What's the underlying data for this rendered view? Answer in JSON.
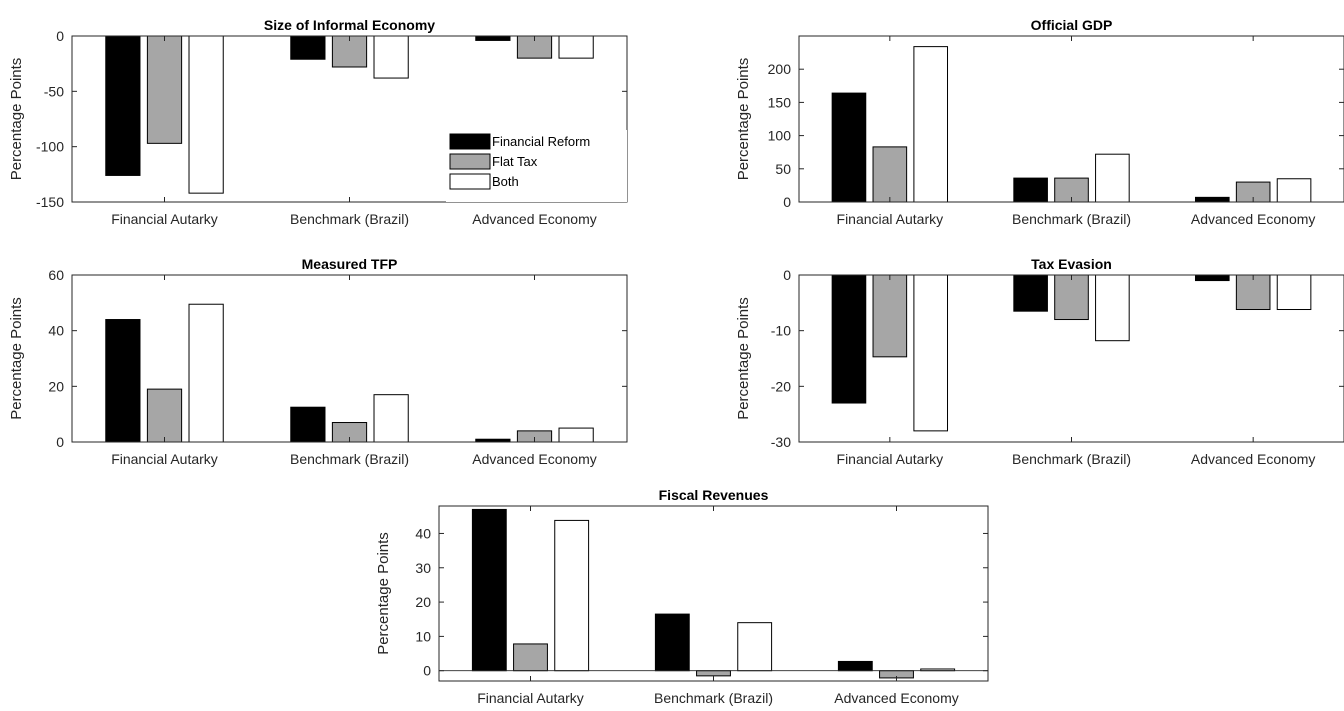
{
  "colors": {
    "series": [
      "#000000",
      "#a6a6a6",
      "#ffffff"
    ],
    "axis": "#262626",
    "background": "#ffffff"
  },
  "chart_data": [
    {
      "type": "bar",
      "title": "Size of Informal Economy",
      "ylabel": "Percentage Points",
      "xlabel": "",
      "categories": [
        "Financial Autarky",
        "Benchmark (Brazil)",
        "Advanced Economy"
      ],
      "ylim": [
        -150,
        0
      ],
      "yticks": [
        -150,
        -100,
        -50,
        0
      ],
      "grid": false,
      "legend_position": "lower-right",
      "series": [
        {
          "name": "Financial Reform",
          "values": [
            -126,
            -21,
            -4
          ]
        },
        {
          "name": "Flat Tax",
          "values": [
            -97,
            -28,
            -20
          ]
        },
        {
          "name": "Both",
          "values": [
            -142,
            -38,
            -20
          ]
        }
      ]
    },
    {
      "type": "bar",
      "title": "Official GDP",
      "ylabel": "Percentage Points",
      "xlabel": "",
      "categories": [
        "Financial Autarky",
        "Benchmark (Brazil)",
        "Advanced Economy"
      ],
      "ylim": [
        0,
        250
      ],
      "yticks": [
        0,
        50,
        100,
        150,
        200
      ],
      "grid": false,
      "series": [
        {
          "name": "Financial Reform",
          "values": [
            164,
            36,
            7
          ]
        },
        {
          "name": "Flat Tax",
          "values": [
            83,
            36,
            30
          ]
        },
        {
          "name": "Both",
          "values": [
            234,
            72,
            35
          ]
        }
      ]
    },
    {
      "type": "bar",
      "title": "Measured TFP",
      "ylabel": "Percentage Points",
      "xlabel": "",
      "categories": [
        "Financial Autarky",
        "Benchmark (Brazil)",
        "Advanced Economy"
      ],
      "ylim": [
        0,
        60
      ],
      "yticks": [
        0,
        20,
        40,
        60
      ],
      "grid": false,
      "series": [
        {
          "name": "Financial Reform",
          "values": [
            44,
            12.5,
            1
          ]
        },
        {
          "name": "Flat Tax",
          "values": [
            19,
            7,
            4
          ]
        },
        {
          "name": "Both",
          "values": [
            49.5,
            17,
            5
          ]
        }
      ]
    },
    {
      "type": "bar",
      "title": "Tax Evasion",
      "ylabel": "Percentage Points",
      "xlabel": "",
      "categories": [
        "Financial Autarky",
        "Benchmark (Brazil)",
        "Advanced Economy"
      ],
      "ylim": [
        -30,
        0
      ],
      "yticks": [
        -30,
        -20,
        -10,
        0
      ],
      "grid": false,
      "series": [
        {
          "name": "Financial Reform",
          "values": [
            -23,
            -6.5,
            -1
          ]
        },
        {
          "name": "Flat Tax",
          "values": [
            -14.7,
            -8,
            -6.2
          ]
        },
        {
          "name": "Both",
          "values": [
            -28,
            -11.8,
            -6.2
          ]
        }
      ]
    },
    {
      "type": "bar",
      "title": "Fiscal Revenues",
      "ylabel": "Percentage Points",
      "xlabel": "",
      "categories": [
        "Financial Autarky",
        "Benchmark (Brazil)",
        "Advanced Economy"
      ],
      "ylim": [
        -3,
        48
      ],
      "yticks": [
        0,
        10,
        20,
        30,
        40
      ],
      "grid": false,
      "series": [
        {
          "name": "Financial Reform",
          "values": [
            47,
            16.5,
            2.7
          ]
        },
        {
          "name": "Flat Tax",
          "values": [
            7.8,
            -1.5,
            -2.1
          ]
        },
        {
          "name": "Both",
          "values": [
            43.8,
            14,
            0.5
          ]
        }
      ]
    }
  ]
}
